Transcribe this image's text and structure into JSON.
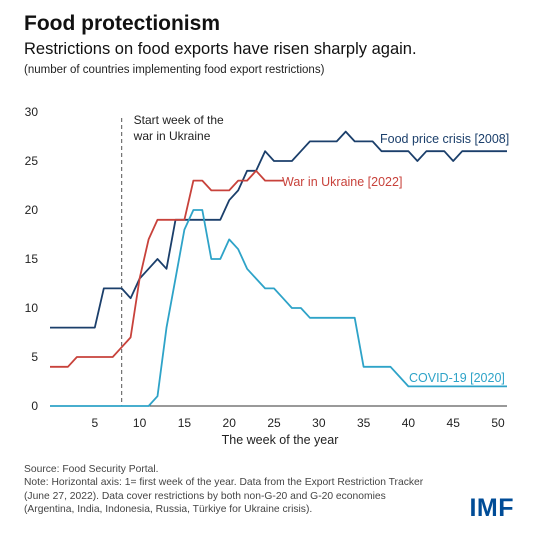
{
  "header": {
    "title": "Food protectionism",
    "subtitle": "Restrictions on food exports have risen sharply again.",
    "unit_note": "(number of countries implementing food export restrictions)"
  },
  "chart_data": {
    "type": "line",
    "title": "Food protectionism",
    "subtitle": "Restrictions on food exports have risen sharply again.",
    "xlabel": "The week of the year",
    "ylabel": "",
    "xlim": [
      0,
      51
    ],
    "ylim": [
      0,
      30
    ],
    "x_ticks": [
      5,
      10,
      15,
      20,
      25,
      30,
      35,
      40,
      45,
      50
    ],
    "y_ticks": [
      0,
      5,
      10,
      15,
      20,
      25,
      30
    ],
    "grid": false,
    "annotation": {
      "x": 8,
      "text_lines": [
        "Start week of the",
        "war in Ukraine"
      ]
    },
    "series": [
      {
        "name": "Food price crisis [2008]",
        "color": "#1b3f6b",
        "x": [
          0,
          1,
          2,
          3,
          4,
          5,
          6,
          7,
          8,
          9,
          10,
          11,
          12,
          13,
          14,
          15,
          16,
          17,
          18,
          19,
          20,
          21,
          22,
          23,
          24,
          25,
          26,
          27,
          28,
          29,
          30,
          31,
          32,
          33,
          34,
          35,
          36,
          37,
          38,
          39,
          40,
          41,
          42,
          43,
          44,
          45,
          46,
          47,
          48,
          49,
          50,
          51
        ],
        "values": [
          8,
          8,
          8,
          8,
          8,
          8,
          12,
          12,
          12,
          11,
          13,
          14,
          15,
          14,
          19,
          19,
          19,
          19,
          19,
          19,
          21,
          22,
          24,
          24,
          26,
          25,
          25,
          25,
          26,
          27,
          27,
          27,
          27,
          28,
          27,
          27,
          27,
          26,
          26,
          26,
          26,
          25,
          26,
          26,
          26,
          25,
          26,
          26,
          26,
          26,
          26,
          26
        ]
      },
      {
        "name": "War in Ukraine [2022]",
        "color": "#c8423b",
        "x": [
          0,
          1,
          2,
          3,
          4,
          5,
          6,
          7,
          8,
          9,
          10,
          11,
          12,
          13,
          14,
          15,
          16,
          17,
          18,
          19,
          20,
          21,
          22,
          23,
          24,
          25,
          26
        ],
        "values": [
          4,
          4,
          4,
          5,
          5,
          5,
          5,
          5,
          6,
          7,
          13,
          17,
          19,
          19,
          19,
          19,
          23,
          23,
          22,
          22,
          22,
          23,
          23,
          24,
          23,
          23,
          23
        ]
      },
      {
        "name": "COVID-19 [2020]",
        "color": "#2ea3c8",
        "x": [
          0,
          1,
          2,
          3,
          4,
          5,
          6,
          7,
          8,
          9,
          10,
          11,
          12,
          13,
          14,
          15,
          16,
          17,
          18,
          19,
          20,
          21,
          22,
          23,
          24,
          25,
          26,
          27,
          28,
          29,
          30,
          31,
          32,
          33,
          34,
          35,
          36,
          37,
          38,
          39,
          40,
          41,
          42,
          43,
          44,
          45,
          46,
          47,
          48,
          49,
          50,
          51
        ],
        "values": [
          0,
          0,
          0,
          0,
          0,
          0,
          0,
          0,
          0,
          0,
          0,
          0,
          1,
          8,
          13,
          18,
          20,
          20,
          15,
          15,
          17,
          16,
          14,
          13,
          12,
          12,
          11,
          10,
          10,
          9,
          9,
          9,
          9,
          9,
          9,
          4,
          4,
          4,
          4,
          3,
          2,
          2,
          2,
          2,
          2,
          2,
          2,
          2,
          2,
          2,
          2,
          2
        ]
      }
    ]
  },
  "footer": {
    "source_lines": [
      "Source: Food Security Portal.",
      "Note: Horizontal axis: 1= first week of the year. Data from the Export Restriction Tracker",
      "(June 27, 2022). Data cover restrictions by both non-G-20 and G-20 economies",
      "(Argentina, India, Indonesia, Russia, Türkiye for Ukraine crisis)."
    ],
    "logo_text": "IMF"
  }
}
